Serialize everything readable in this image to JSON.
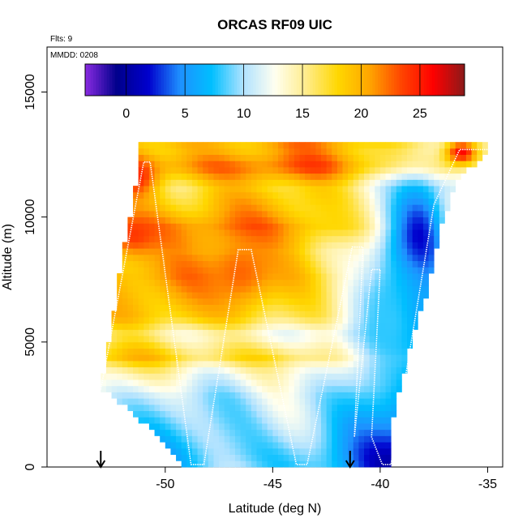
{
  "chart_data": {
    "type": "heatmap",
    "title": "ORCAS RF09 UIC",
    "annotations": {
      "flights": "Flts: 9",
      "date": "MMDD: 0208"
    },
    "xlabel": "Latitude (deg N)",
    "ylabel": "Altitude (m)",
    "xlim": [
      -55.5,
      -34.3
    ],
    "ylim": [
      0,
      16800
    ],
    "x_ticks": [
      -50,
      -45,
      -40,
      -35
    ],
    "x_tick_labels": [
      "-50",
      "-45",
      "-40",
      "-35"
    ],
    "y_ticks": [
      0,
      5000,
      10000,
      15000
    ],
    "y_tick_labels": [
      "0",
      "5000",
      "10000",
      "15000"
    ],
    "colorbar": {
      "range": [
        -3.5,
        28.8
      ],
      "ticks": [
        0,
        5,
        10,
        15,
        20,
        25
      ],
      "tick_labels": [
        "0",
        "5",
        "10",
        "15",
        "20",
        "25"
      ],
      "colors": [
        "#8a2be2",
        "#00008b",
        "#0000cd",
        "#1e90ff",
        "#00bfff",
        "#b0e2ff",
        "#fffff0",
        "#ffec8b",
        "#ffd700",
        "#ffa500",
        "#ff4500",
        "#ff0000",
        "#8b1a1a"
      ]
    },
    "field": {
      "x_range": [
        -53.5,
        -35
      ],
      "y_range": [
        0,
        12800
      ],
      "row_step_m": 250,
      "col_step_deg": 0.25,
      "left_boundary": [
        [
          0,
          -49
        ],
        [
          2200,
          -51.5
        ],
        [
          3200,
          -53
        ],
        [
          5000,
          -52.6
        ],
        [
          8500,
          -52
        ],
        [
          10000,
          -51.6
        ],
        [
          12200,
          -51.2
        ]
      ],
      "right_boundary": [
        [
          0,
          -39.5
        ],
        [
          2000,
          -39.4
        ],
        [
          4000,
          -38.8
        ],
        [
          5500,
          -38.4
        ],
        [
          7000,
          -37.8
        ],
        [
          8000,
          -37.6
        ],
        [
          9500,
          -37.2
        ],
        [
          11500,
          -36.4
        ],
        [
          12400,
          -35.2
        ],
        [
          12800,
          -35
        ]
      ],
      "bands": [
        {
          "alt": 500,
          "value": 8
        },
        {
          "alt": 1600,
          "value": 9.5
        },
        {
          "alt": 2800,
          "value": 11
        },
        {
          "alt": 3800,
          "value": 14
        },
        {
          "alt": 4400,
          "value": 18
        },
        {
          "alt": 5300,
          "value": 14
        },
        {
          "alt": 6000,
          "value": 18
        },
        {
          "alt": 7600,
          "value": 20
        },
        {
          "alt": 8600,
          "value": 19
        },
        {
          "alt": 9600,
          "value": 21
        },
        {
          "alt": 10300,
          "value": 19
        },
        {
          "alt": 11200,
          "value": 17.5
        },
        {
          "alt": 12000,
          "value": 22
        },
        {
          "alt": 12600,
          "value": 20
        }
      ],
      "cold_cores": [
        {
          "lat": -38.3,
          "alt": 8800,
          "value": -1,
          "width_deg": 1.4,
          "height_m": 2600
        },
        {
          "lat": -38.6,
          "alt": 6200,
          "value": 2,
          "width_deg": 1.3,
          "height_m": 1800
        },
        {
          "lat": -39.6,
          "alt": 5800,
          "value": 8,
          "width_deg": 2.2,
          "height_m": 3500
        }
      ],
      "warm_patches": [
        {
          "lat": -46.5,
          "alt": 7800,
          "value": 22.5,
          "width_deg": 1.6,
          "height_m": 1400
        },
        {
          "lat": -51.5,
          "alt": 11600,
          "value": 25,
          "width_deg": 1.2,
          "height_m": 900
        },
        {
          "lat": -51.5,
          "alt": 9300,
          "value": 24,
          "width_deg": 1.3,
          "height_m": 900
        },
        {
          "lat": -36.2,
          "alt": 12600,
          "value": 26,
          "width_deg": 0.8,
          "height_m": 500
        }
      ]
    },
    "flight_track": [
      [
        -53.0,
        3100
      ],
      [
        -51.0,
        12200
      ],
      [
        -50.7,
        12200
      ],
      [
        -48.8,
        100
      ],
      [
        -48.2,
        100
      ],
      [
        -46.6,
        8700
      ],
      [
        -46.0,
        8700
      ],
      [
        -43.9,
        100
      ],
      [
        -43.4,
        100
      ],
      [
        -41.3,
        8800
      ],
      [
        -40.8,
        8800
      ],
      [
        -41.2,
        1200
      ],
      [
        -40.4,
        7900
      ],
      [
        -40.0,
        7900
      ],
      [
        -40.4,
        1200
      ],
      [
        -39.9,
        100
      ],
      [
        -39.5,
        100
      ],
      [
        -37.5,
        10500
      ],
      [
        -36.3,
        12700
      ],
      [
        -35.0,
        12700
      ]
    ],
    "markers": [
      {
        "lat": -53.0,
        "symbol": "arrow-down"
      },
      {
        "lat": -41.4,
        "symbol": "arrow-down"
      }
    ]
  }
}
